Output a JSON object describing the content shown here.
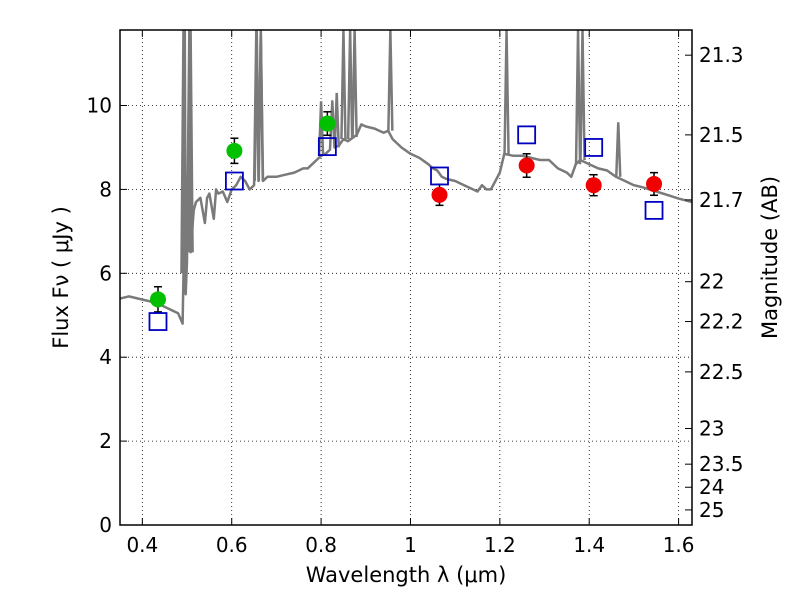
{
  "chart_data": {
    "type": "scatter",
    "xlabel": "Wavelength  λ (μm)",
    "ylabel": "Flux  Fν  ( μJy )",
    "ylabel_right": "Magnitude (AB)",
    "xlim": [
      0.35,
      1.63
    ],
    "ylim": [
      0,
      11.8
    ],
    "grid": true,
    "x_ticks": [
      0.4,
      0.6,
      0.8,
      1.0,
      1.2,
      1.4,
      1.6
    ],
    "x_tick_labels": [
      "0.4",
      "0.6",
      "0.8",
      "1",
      "1.2",
      "1.4",
      "1.6"
    ],
    "y_ticks": [
      0,
      2,
      4,
      6,
      8,
      10
    ],
    "y_tick_labels": [
      "0",
      "2",
      "4",
      "6",
      "8",
      "10"
    ],
    "right_ticks": [
      {
        "label": "21.3",
        "flux": 11.2
      },
      {
        "label": "21.5",
        "flux": 9.3
      },
      {
        "label": "21.7",
        "flux": 7.75
      },
      {
        "label": "22",
        "flux": 5.8
      },
      {
        "label": "22.2",
        "flux": 4.85
      },
      {
        "label": "22.5",
        "flux": 3.65
      },
      {
        "label": "23",
        "flux": 2.3
      },
      {
        "label": "23.5",
        "flux": 1.45
      },
      {
        "label": "24",
        "flux": 0.9
      },
      {
        "label": "25",
        "flux": 0.36
      }
    ],
    "series": [
      {
        "marker": "circle",
        "color": "#00c000",
        "points": [
          {
            "x": 0.435,
            "y": 5.38,
            "err": 0.3
          },
          {
            "x": 0.606,
            "y": 8.92,
            "err": 0.3
          },
          {
            "x": 0.814,
            "y": 9.57,
            "err": 0.28
          }
        ]
      },
      {
        "marker": "circle",
        "color": "#f00000",
        "points": [
          {
            "x": 1.065,
            "y": 7.87,
            "err": 0.25
          },
          {
            "x": 1.26,
            "y": 8.57,
            "err": 0.28
          },
          {
            "x": 1.41,
            "y": 8.1,
            "err": 0.25
          },
          {
            "x": 1.545,
            "y": 8.13,
            "err": 0.27
          }
        ]
      },
      {
        "marker": "square-open",
        "color": "#0000c0",
        "points": [
          {
            "x": 0.435,
            "y": 4.85
          },
          {
            "x": 0.606,
            "y": 8.2
          },
          {
            "x": 0.814,
            "y": 9.02
          },
          {
            "x": 1.065,
            "y": 8.32
          },
          {
            "x": 1.26,
            "y": 9.3
          },
          {
            "x": 1.41,
            "y": 9.0
          },
          {
            "x": 1.545,
            "y": 7.5
          }
        ]
      },
      {
        "type": "line",
        "color": "#7a7a7a",
        "points": [
          [
            0.35,
            5.4
          ],
          [
            0.37,
            5.45
          ],
          [
            0.39,
            5.4
          ],
          [
            0.41,
            5.35
          ],
          [
            0.43,
            5.3
          ],
          [
            0.45,
            5.2
          ],
          [
            0.47,
            5.1
          ],
          [
            0.48,
            5.05
          ],
          [
            0.49,
            4.8
          ],
          [
            0.492,
            6.0
          ],
          [
            0.495,
            11.8
          ],
          [
            0.497,
            5.5
          ],
          [
            0.5,
            6.3
          ],
          [
            0.505,
            11.8
          ],
          [
            0.508,
            6.5
          ],
          [
            0.515,
            7.5
          ],
          [
            0.52,
            7.7
          ],
          [
            0.53,
            7.8
          ],
          [
            0.54,
            7.2
          ],
          [
            0.545,
            7.8
          ],
          [
            0.55,
            7.9
          ],
          [
            0.56,
            7.3
          ],
          [
            0.565,
            8.0
          ],
          [
            0.57,
            7.9
          ],
          [
            0.58,
            7.95
          ],
          [
            0.59,
            7.7
          ],
          [
            0.6,
            8.0
          ],
          [
            0.605,
            8.05
          ],
          [
            0.61,
            8.1
          ],
          [
            0.62,
            8.3
          ],
          [
            0.63,
            8.2
          ],
          [
            0.64,
            8.0
          ],
          [
            0.65,
            8.1
          ],
          [
            0.655,
            11.8
          ],
          [
            0.66,
            8.2
          ],
          [
            0.665,
            11.8
          ],
          [
            0.67,
            8.2
          ],
          [
            0.68,
            8.3
          ],
          [
            0.7,
            8.3
          ],
          [
            0.72,
            8.35
          ],
          [
            0.74,
            8.4
          ],
          [
            0.75,
            8.45
          ],
          [
            0.76,
            8.5
          ],
          [
            0.77,
            8.5
          ],
          [
            0.78,
            8.6
          ],
          [
            0.79,
            8.7
          ],
          [
            0.8,
            8.8
          ],
          [
            0.81,
            8.85
          ],
          [
            0.82,
            8.95
          ],
          [
            0.825,
            10.1
          ],
          [
            0.83,
            9.0
          ],
          [
            0.84,
            9.05
          ],
          [
            0.85,
            9.2
          ],
          [
            0.86,
            9.15
          ],
          [
            0.88,
            9.3
          ],
          [
            0.89,
            9.55
          ],
          [
            0.9,
            9.5
          ],
          [
            0.92,
            9.45
          ],
          [
            0.94,
            9.35
          ],
          [
            0.95,
            9.4
          ],
          [
            0.96,
            9.2
          ],
          [
            0.98,
            9.0
          ],
          [
            1.0,
            8.85
          ],
          [
            1.02,
            8.75
          ],
          [
            1.04,
            8.6
          ],
          [
            1.05,
            8.5
          ],
          [
            1.06,
            8.45
          ],
          [
            1.07,
            8.3
          ],
          [
            1.08,
            8.25
          ],
          [
            1.1,
            8.2
          ],
          [
            1.12,
            8.1
          ],
          [
            1.14,
            8.0
          ],
          [
            1.15,
            7.95
          ],
          [
            1.16,
            8.1
          ],
          [
            1.17,
            8.0
          ],
          [
            1.18,
            8.0
          ],
          [
            1.19,
            8.2
          ],
          [
            1.2,
            8.4
          ],
          [
            1.21,
            8.85
          ],
          [
            1.23,
            8.8
          ],
          [
            1.25,
            8.8
          ],
          [
            1.27,
            8.75
          ],
          [
            1.29,
            8.7
          ],
          [
            1.31,
            8.7
          ],
          [
            1.33,
            8.5
          ],
          [
            1.35,
            8.4
          ],
          [
            1.36,
            8.3
          ],
          [
            1.37,
            8.6
          ],
          [
            1.38,
            8.7
          ],
          [
            1.4,
            8.6
          ],
          [
            1.42,
            8.5
          ],
          [
            1.44,
            8.45
          ],
          [
            1.46,
            8.3
          ],
          [
            1.48,
            8.2
          ],
          [
            1.5,
            8.1
          ],
          [
            1.52,
            8.05
          ],
          [
            1.55,
            7.95
          ],
          [
            1.58,
            7.85
          ],
          [
            1.6,
            7.78
          ],
          [
            1.63,
            7.7
          ]
        ],
        "spikes": [
          {
            "x": 0.492,
            "top": 11.8,
            "base": 6.0
          },
          {
            "x": 0.508,
            "top": 11.8,
            "base": 6.5
          },
          {
            "x": 0.656,
            "top": 11.8,
            "base": 8.2
          },
          {
            "x": 0.665,
            "top": 11.8,
            "base": 8.2
          },
          {
            "x": 0.8,
            "top": 10.1,
            "base": 8.8
          },
          {
            "x": 0.835,
            "top": 10.3,
            "base": 9.0
          },
          {
            "x": 0.85,
            "top": 11.8,
            "base": 9.2
          },
          {
            "x": 0.865,
            "top": 11.8,
            "base": 9.2
          },
          {
            "x": 0.875,
            "top": 11.8,
            "base": 9.25
          },
          {
            "x": 0.955,
            "top": 11.8,
            "base": 9.4
          },
          {
            "x": 1.215,
            "top": 11.8,
            "base": 8.85
          },
          {
            "x": 1.375,
            "top": 11.8,
            "base": 8.6
          },
          {
            "x": 1.385,
            "top": 11.8,
            "base": 8.7
          },
          {
            "x": 1.465,
            "top": 9.6,
            "base": 8.3
          }
        ]
      }
    ]
  }
}
